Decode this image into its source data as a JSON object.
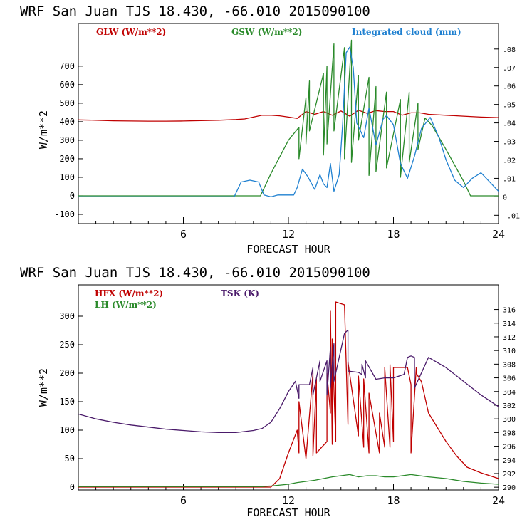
{
  "chart_data": [
    {
      "type": "line",
      "title": "WRF  San Juan TJS  18.430, -66.010  2015090100",
      "xlabel": "FORECAST HOUR",
      "ylabel": "W/m**2",
      "xlim": [
        0,
        24
      ],
      "ylim": [
        -150,
        930
      ],
      "y2lim": [
        -0.0145,
        0.0938
      ],
      "x_ticks": [
        "6",
        "12",
        "18",
        "24"
      ],
      "y_ticks": [
        "-100",
        "0",
        "100",
        "200",
        "300",
        "400",
        "500",
        "600",
        "700"
      ],
      "y2_ticks": [
        "-.01",
        "0",
        ".01",
        ".02",
        ".03",
        ".04",
        ".05",
        ".06",
        ".07",
        ".08"
      ],
      "colors": {
        "glw": "#c00000",
        "gsw": "#2a8a2a",
        "cloud": "#1f80d0"
      },
      "series": [
        {
          "name": "GLW (W/m**2)",
          "axis": "left",
          "x": [
            0,
            1,
            2,
            3,
            4,
            5,
            6,
            7,
            8,
            9,
            9.5,
            10,
            10.5,
            11,
            11.5,
            12,
            12.5,
            13,
            13.5,
            14,
            14.5,
            15,
            15.5,
            16,
            16.5,
            17,
            17.5,
            18,
            18.5,
            19,
            19.5,
            20,
            21,
            22,
            23,
            24
          ],
          "values": [
            410,
            408,
            405,
            404,
            403,
            403,
            404,
            406,
            408,
            412,
            415,
            425,
            435,
            435,
            432,
            425,
            418,
            455,
            440,
            455,
            435,
            458,
            430,
            462,
            445,
            460,
            455,
            455,
            435,
            448,
            448,
            440,
            435,
            430,
            425,
            422
          ]
        },
        {
          "name": "GSW (W/m**2)",
          "axis": "left",
          "x": [
            0,
            10,
            10.4,
            11,
            12,
            12.6,
            12.6,
            13,
            13,
            13.2,
            13.2,
            14,
            14,
            14.2,
            14.2,
            14.6,
            14.6,
            15.2,
            15.2,
            15.6,
            15.6,
            16,
            16,
            16.6,
            16.6,
            17,
            17,
            17.6,
            17.6,
            18.4,
            18.4,
            18.9,
            18.9,
            19.4,
            19.4,
            19.8,
            20.2,
            21,
            22,
            22.4,
            24
          ],
          "values": [
            0,
            0,
            0,
            120,
            300,
            370,
            200,
            530,
            280,
            620,
            350,
            660,
            220,
            700,
            280,
            820,
            350,
            800,
            200,
            840,
            180,
            650,
            300,
            640,
            110,
            590,
            130,
            560,
            150,
            520,
            100,
            560,
            180,
            500,
            250,
            420,
            380,
            250,
            80,
            0,
            0
          ]
        },
        {
          "name": "Integrated cloud (mm)",
          "axis": "right",
          "x": [
            0,
            8.9,
            9.3,
            9.8,
            10.3,
            10.6,
            11,
            11.4,
            11.9,
            12.3,
            12.5,
            12.8,
            13.1,
            13.5,
            13.8,
            14,
            14.2,
            14.4,
            14.6,
            14.9,
            15.1,
            15.3,
            15.5,
            15.7,
            15.9,
            16.3,
            16.6,
            17,
            17.4,
            17.6,
            18,
            18.4,
            18.8,
            19.2,
            19.6,
            20.1,
            20.6,
            21,
            21.5,
            22,
            22.5,
            23,
            23.5,
            24
          ],
          "values": [
            0,
            0,
            0.008,
            0.009,
            0.008,
            0.001,
            0.0,
            0.001,
            0.001,
            0.001,
            0.005,
            0.015,
            0.011,
            0.004,
            0.012,
            0.007,
            0.005,
            0.018,
            0.003,
            0.012,
            0.04,
            0.078,
            0.081,
            0.07,
            0.04,
            0.032,
            0.048,
            0.028,
            0.042,
            0.044,
            0.039,
            0.018,
            0.01,
            0.022,
            0.037,
            0.043,
            0.032,
            0.02,
            0.009,
            0.005,
            0.01,
            0.013,
            0.008,
            0.003
          ]
        }
      ]
    },
    {
      "type": "line",
      "title": "WRF  San Juan TJS  18.430, -66.010  2015090100",
      "xlabel": "FORECAST HOUR",
      "ylabel": "W/m**2",
      "xlim": [
        0,
        24
      ],
      "ylim": [
        -5,
        355
      ],
      "y2lim": [
        289.6,
        319.6
      ],
      "x_ticks": [
        "6",
        "12",
        "18",
        "24"
      ],
      "y_ticks": [
        "0",
        "50",
        "100",
        "150",
        "200",
        "250",
        "300"
      ],
      "y2_ticks": [
        "290",
        "292",
        "294",
        "296",
        "298",
        "300",
        "302",
        "304",
        "306",
        "308",
        "310",
        "312",
        "314",
        "316"
      ],
      "colors": {
        "hfx": "#c00000",
        "lh": "#2a8a2a",
        "tsk": "#4a1a6a"
      },
      "series": [
        {
          "name": "HFX (W/m**2)",
          "axis": "left",
          "x": [
            0,
            10.5,
            11,
            11.5,
            12,
            12.5,
            12.6,
            12.6,
            13,
            13.4,
            13.4,
            13.6,
            13.6,
            14.2,
            14.2,
            14.4,
            14.4,
            14.5,
            14.5,
            14.7,
            14.7,
            15.2,
            15.4,
            15.4,
            16,
            16,
            16.3,
            16.3,
            16.6,
            16.6,
            17.2,
            17.2,
            17.5,
            17.5,
            17.8,
            17.8,
            18,
            18,
            18.8,
            19,
            19,
            19.3,
            19.3,
            19.6,
            20,
            20.6,
            21,
            21.6,
            22.2,
            23,
            24
          ],
          "values": [
            0,
            0,
            0,
            15,
            60,
            100,
            60,
            150,
            50,
            200,
            55,
            190,
            60,
            80,
            200,
            130,
            310,
            75,
            260,
            80,
            325,
            320,
            110,
            220,
            90,
            195,
            70,
            190,
            60,
            165,
            60,
            130,
            70,
            210,
            70,
            215,
            80,
            210,
            210,
            180,
            60,
            210,
            200,
            185,
            130,
            100,
            80,
            55,
            35,
            25,
            15
          ]
        },
        {
          "name": "LH (W/m**2)",
          "axis": "left",
          "x": [
            0,
            10.5,
            11,
            12,
            12.5,
            13,
            13.5,
            14,
            14.5,
            15,
            15.5,
            16,
            16.5,
            17,
            17.5,
            18,
            18.5,
            19,
            19.5,
            20,
            21,
            22,
            23,
            24
          ],
          "values": [
            1,
            1,
            2,
            5,
            8,
            10,
            12,
            15,
            18,
            20,
            22,
            18,
            20,
            20,
            18,
            18,
            20,
            22,
            20,
            18,
            15,
            10,
            7,
            5
          ]
        },
        {
          "name": "TSK (K)",
          "axis": "right",
          "x": [
            0,
            1,
            2,
            3,
            4,
            5,
            6,
            7,
            8,
            9,
            10,
            10.5,
            11,
            11.5,
            12,
            12.4,
            12.6,
            12.6,
            13.2,
            13.4,
            13.4,
            13.8,
            13.8,
            14.2,
            14.2,
            14.4,
            14.4,
            14.6,
            14.6,
            15.2,
            15.4,
            15.4,
            16,
            16.2,
            16.2,
            16.4,
            16.4,
            17,
            17.5,
            18,
            18.6,
            18.8,
            19,
            19.2,
            19.2,
            20,
            21,
            22,
            23,
            24
          ],
          "values": [
            300.7,
            300.0,
            299.5,
            299.1,
            298.8,
            298.5,
            298.3,
            298.1,
            298.0,
            298.0,
            298.3,
            298.6,
            299.5,
            301.5,
            304.0,
            305.5,
            303.0,
            305.0,
            305.0,
            307.5,
            303.5,
            308.5,
            305.5,
            308.5,
            303.5,
            310.5,
            304.5,
            311.0,
            305.5,
            312.5,
            313.0,
            307.0,
            306.8,
            306.5,
            308.0,
            306.0,
            308.5,
            305.8,
            306.0,
            306.0,
            306.5,
            309.0,
            309.2,
            309.0,
            304.5,
            309.0,
            307.5,
            305.5,
            303.5,
            301.8
          ]
        }
      ]
    }
  ]
}
